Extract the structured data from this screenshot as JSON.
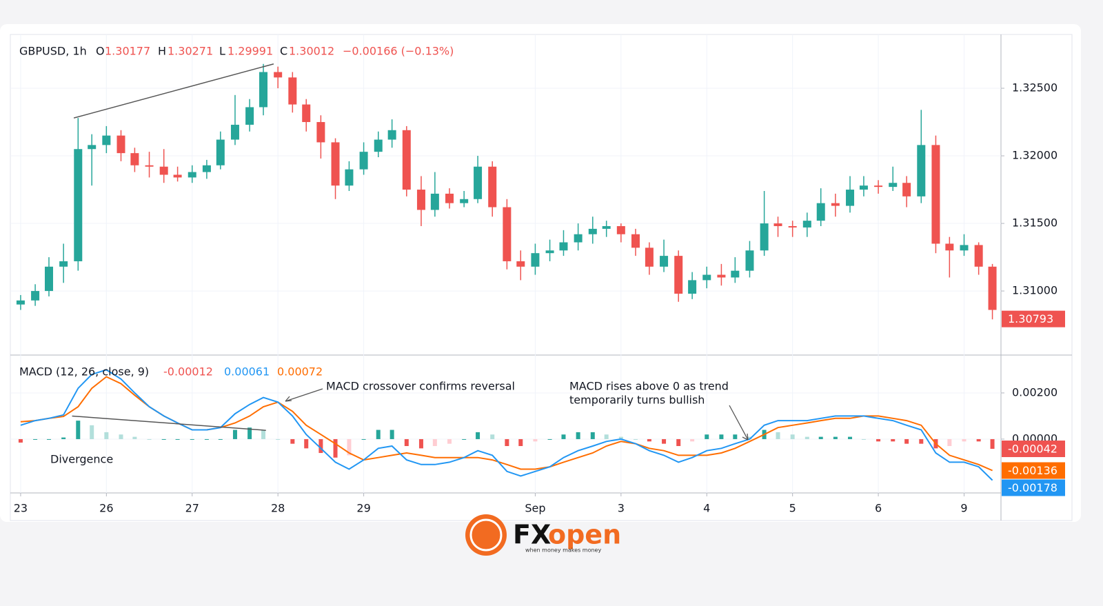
{
  "chart_data": [
    {
      "type": "candlestick",
      "legend": {
        "symbol": "GBPUSD, 1h",
        "items": [
          {
            "key": "O",
            "value": 1.30177
          },
          {
            "key": "H",
            "value": 1.30271
          },
          {
            "key": "L",
            "value": 1.29991
          },
          {
            "key": "C",
            "value": 1.30012
          }
        ],
        "change": "−0.00166 (−0.13%)"
      },
      "up_color": "#26a69a",
      "down_color": "#ef5350",
      "x": [
        0,
        0.17,
        0.33,
        0.5,
        0.67,
        0.83,
        1,
        1.17,
        1.33,
        1.5,
        1.67,
        1.83,
        2,
        2.17,
        2.33,
        2.5,
        2.67,
        2.83,
        3,
        3.17,
        3.33,
        3.5,
        3.67,
        3.83,
        4,
        4.17,
        4.33,
        4.5,
        4.67,
        4.83,
        5,
        5.17,
        5.33,
        5.5,
        5.67,
        5.83,
        6,
        6.17,
        6.33,
        6.5,
        6.67,
        6.83,
        7,
        7.17,
        7.33,
        7.5,
        7.67,
        7.83,
        8,
        8.17,
        8.33,
        8.5,
        8.67,
        8.83,
        9,
        9.17,
        9.33,
        9.5,
        9.67,
        9.83,
        10,
        10.17,
        10.33,
        10.5,
        10.67,
        10.83,
        11,
        11.17,
        11.33
      ],
      "open": [
        1.309,
        1.3093,
        1.31,
        1.3118,
        1.3122,
        1.3205,
        1.3208,
        1.3215,
        1.3202,
        1.3193,
        1.3192,
        1.3186,
        1.3184,
        1.3188,
        1.3193,
        1.3212,
        1.3223,
        1.3236,
        1.3262,
        1.3258,
        1.3238,
        1.3225,
        1.321,
        1.3178,
        1.319,
        1.3203,
        1.3212,
        1.3219,
        1.3175,
        1.316,
        1.3172,
        1.3165,
        1.3168,
        1.3192,
        1.3162,
        1.3122,
        1.3118,
        1.3128,
        1.313,
        1.3136,
        1.3142,
        1.3146,
        1.3148,
        1.3142,
        1.3132,
        1.3118,
        1.3126,
        1.3098,
        1.3108,
        1.3112,
        1.311,
        1.3115,
        1.313,
        1.315,
        1.3148,
        1.3147,
        1.3152,
        1.3165,
        1.3163,
        1.3175,
        1.3178,
        1.3177,
        1.318,
        1.317,
        1.3208,
        1.3135,
        1.313,
        1.3134,
        1.3118
      ],
      "high": [
        1.3097,
        1.3105,
        1.3125,
        1.3135,
        1.3228,
        1.3216,
        1.3222,
        1.3219,
        1.3206,
        1.3203,
        1.3205,
        1.3192,
        1.3193,
        1.3197,
        1.3218,
        1.3245,
        1.3242,
        1.3268,
        1.3266,
        1.3262,
        1.3242,
        1.323,
        1.3213,
        1.3196,
        1.321,
        1.3218,
        1.3227,
        1.3222,
        1.3185,
        1.3188,
        1.3176,
        1.3174,
        1.32,
        1.3196,
        1.3168,
        1.313,
        1.3135,
        1.3138,
        1.3145,
        1.315,
        1.3155,
        1.3152,
        1.315,
        1.3146,
        1.3136,
        1.3138,
        1.313,
        1.3114,
        1.3118,
        1.312,
        1.3125,
        1.3137,
        1.3174,
        1.3155,
        1.3152,
        1.3158,
        1.3176,
        1.3172,
        1.3185,
        1.3185,
        1.3182,
        1.3192,
        1.3185,
        1.3234,
        1.3215,
        1.314,
        1.3142,
        1.3136,
        1.312
      ],
      "low": [
        1.3086,
        1.3089,
        1.3096,
        1.3106,
        1.3115,
        1.3178,
        1.3202,
        1.3196,
        1.3188,
        1.3184,
        1.318,
        1.3181,
        1.318,
        1.3183,
        1.319,
        1.3208,
        1.3218,
        1.323,
        1.325,
        1.3232,
        1.3218,
        1.3198,
        1.3168,
        1.3174,
        1.3186,
        1.3199,
        1.3206,
        1.317,
        1.3148,
        1.3155,
        1.3161,
        1.3162,
        1.3165,
        1.3155,
        1.3116,
        1.3108,
        1.3112,
        1.3122,
        1.3126,
        1.313,
        1.3135,
        1.314,
        1.3136,
        1.3126,
        1.3112,
        1.3114,
        1.3092,
        1.3094,
        1.3102,
        1.3104,
        1.3106,
        1.311,
        1.3126,
        1.314,
        1.314,
        1.314,
        1.3148,
        1.3155,
        1.3158,
        1.317,
        1.3172,
        1.3174,
        1.3162,
        1.3165,
        1.3128,
        1.311,
        1.3126,
        1.3112,
        1.3079
      ],
      "close": [
        1.3093,
        1.31,
        1.3118,
        1.3122,
        1.3205,
        1.3208,
        1.3215,
        1.3202,
        1.3193,
        1.3192,
        1.3186,
        1.3184,
        1.3188,
        1.3193,
        1.3212,
        1.3223,
        1.3236,
        1.3262,
        1.3258,
        1.3238,
        1.3225,
        1.321,
        1.3178,
        1.319,
        1.3203,
        1.3212,
        1.3219,
        1.3175,
        1.316,
        1.3172,
        1.3165,
        1.3168,
        1.3192,
        1.3162,
        1.3122,
        1.3118,
        1.3128,
        1.313,
        1.3136,
        1.3142,
        1.3146,
        1.3148,
        1.3142,
        1.3132,
        1.3118,
        1.3126,
        1.3098,
        1.3108,
        1.3112,
        1.311,
        1.3115,
        1.313,
        1.315,
        1.3148,
        1.3147,
        1.3152,
        1.3165,
        1.3163,
        1.3175,
        1.3178,
        1.3177,
        1.318,
        1.317,
        1.3208,
        1.3135,
        1.313,
        1.3134,
        1.3118,
        1.3086
      ],
      "last_price": 1.30793,
      "trendline": {
        "x": [
          0.62,
          2.95
        ],
        "y": [
          1.3228,
          1.3268
        ]
      },
      "xlim": [
        -0.12,
        11.43
      ],
      "ylim": [
        1.30526,
        1.32898
      ],
      "yticks": [
        {
          "value": 1.31,
          "label": "1.31000"
        },
        {
          "value": 1.315,
          "label": "1.31500"
        },
        {
          "value": 1.32,
          "label": "1.32000"
        },
        {
          "value": 1.325,
          "label": "1.32500"
        }
      ],
      "grid": true
    },
    {
      "type": "macd",
      "title": "MACD (12, 26, close, 9)",
      "x": [
        0,
        0.17,
        0.33,
        0.5,
        0.67,
        0.83,
        1,
        1.17,
        1.33,
        1.5,
        1.67,
        1.83,
        2,
        2.17,
        2.33,
        2.5,
        2.67,
        2.83,
        3,
        3.17,
        3.33,
        3.5,
        3.67,
        3.83,
        4,
        4.17,
        4.33,
        4.5,
        4.67,
        4.83,
        5,
        5.17,
        5.33,
        5.5,
        5.67,
        5.83,
        6,
        6.17,
        6.33,
        6.5,
        6.67,
        6.83,
        7,
        7.17,
        7.33,
        7.5,
        7.67,
        7.83,
        8,
        8.17,
        8.33,
        8.5,
        8.67,
        8.83,
        9,
        9.17,
        9.33,
        9.5,
        9.67,
        9.83,
        10,
        10.17,
        10.33,
        10.5,
        10.67,
        10.83,
        11,
        11.17,
        11.33
      ],
      "histogram": {
        "colors": [
          "#26a69a",
          "#b2dfdb",
          "#ef5350",
          "#ffcdd2"
        ],
        "legend_color": "#ef5350",
        "last": -0.00012,
        "tag": -0.00042,
        "values": [
          -0.00015,
          0,
          0,
          7e-05,
          0.0008,
          0.0006,
          0.0003,
          0.0002,
          0.0001,
          0,
          0,
          0,
          0,
          0,
          0,
          0.0004,
          0.0005,
          0.0004,
          0,
          -0.0002,
          -0.0004,
          -0.0006,
          -0.0008,
          -0.0007,
          0,
          0.0004,
          0.0004,
          -0.0003,
          -0.0004,
          -0.0003,
          -0.0002,
          0,
          0.0003,
          0.0002,
          -0.0003,
          -0.0003,
          -0.0001,
          0,
          0.0002,
          0.0003,
          0.0003,
          0.0002,
          0.0001,
          0,
          -0.0001,
          -0.0002,
          -0.0003,
          -0.0001,
          0.0002,
          0.0002,
          0.0002,
          0.0001,
          0.0004,
          0.0003,
          0.0002,
          0.0001,
          0.0001,
          0.0001,
          0.0001,
          0,
          -0.0001,
          -0.0001,
          -0.0002,
          -0.0002,
          -0.0004,
          -0.0003,
          -0.0001,
          -0.0001,
          -0.00042
        ]
      },
      "series": [
        {
          "color": "#2196f3",
          "last": 0.00061,
          "tag": -0.00178,
          "values": [
            0.0006,
            0.0008,
            0.0009,
            0.00105,
            0.0022,
            0.0028,
            0.003,
            0.0026,
            0.002,
            0.0014,
            0.001,
            0.0007,
            0.0004,
            0.0004,
            0.0005,
            0.0011,
            0.0015,
            0.0018,
            0.0016,
            0.001,
            0.0002,
            -0.0004,
            -0.001,
            -0.0013,
            -0.0009,
            -0.0004,
            -0.0003,
            -0.0009,
            -0.0011,
            -0.0011,
            -0.001,
            -0.0008,
            -0.0005,
            -0.0007,
            -0.0014,
            -0.0016,
            -0.0014,
            -0.0012,
            -0.0008,
            -0.0005,
            -0.0003,
            -0.0001,
            0,
            -0.0002,
            -0.0005,
            -0.0007,
            -0.001,
            -0.0008,
            -0.0005,
            -0.0004,
            -0.0002,
            0,
            0.0006,
            0.0008,
            0.0008,
            0.0008,
            0.0009,
            0.001,
            0.001,
            0.001,
            0.0009,
            0.0008,
            0.0006,
            0.0004,
            -0.0006,
            -0.001,
            -0.001,
            -0.0012,
            -0.00178
          ]
        },
        {
          "color": "#ff6d00",
          "last": 0.00072,
          "tag": -0.00136,
          "values": [
            0.00075,
            0.0008,
            0.0009,
            0.00098,
            0.0014,
            0.0022,
            0.0027,
            0.0024,
            0.0019,
            0.0014,
            0.001,
            0.0007,
            0.0004,
            0.0004,
            0.0005,
            0.0007,
            0.001,
            0.0014,
            0.0016,
            0.0012,
            0.0006,
            0.0002,
            -0.0002,
            -0.0006,
            -0.0009,
            -0.0008,
            -0.0007,
            -0.0006,
            -0.0007,
            -0.0008,
            -0.0008,
            -0.0008,
            -0.0008,
            -0.0009,
            -0.0011,
            -0.0013,
            -0.0013,
            -0.0012,
            -0.001,
            -0.0008,
            -0.0006,
            -0.0003,
            -0.0001,
            -0.0002,
            -0.0004,
            -0.0005,
            -0.0007,
            -0.0007,
            -0.0007,
            -0.0006,
            -0.0004,
            -0.0001,
            0.0002,
            0.0005,
            0.0006,
            0.0007,
            0.0008,
            0.0009,
            0.0009,
            0.001,
            0.001,
            0.0009,
            0.0008,
            0.0006,
            -0.0002,
            -0.0007,
            -0.0009,
            -0.0011,
            -0.00136
          ]
        }
      ],
      "trendline": {
        "x": [
          0.6,
          2.86
        ],
        "y": [
          0.001,
          0.00038
        ]
      },
      "annotations": [
        {
          "lines": [
            "MACD crossover confirms reversal"
          ]
        },
        {
          "lines": [
            "MACD rises above 0 as trend",
            "temporarily turns bullish"
          ]
        },
        {
          "lines": [
            "Divergence"
          ]
        }
      ],
      "xlim": [
        -0.12,
        11.43
      ],
      "ylim": [
        -0.00233,
        0.00364
      ],
      "xticks": [
        {
          "value": 0,
          "label": "23"
        },
        {
          "value": 1,
          "label": "26"
        },
        {
          "value": 2,
          "label": "27"
        },
        {
          "value": 3,
          "label": "28"
        },
        {
          "value": 4,
          "label": "29"
        },
        {
          "value": 6,
          "label": "Sep"
        },
        {
          "value": 7,
          "label": "3"
        },
        {
          "value": 8,
          "label": "4"
        },
        {
          "value": 9,
          "label": "5"
        },
        {
          "value": 10,
          "label": "6"
        },
        {
          "value": 11,
          "label": "9"
        }
      ],
      "yticks": [
        {
          "value": 0,
          "label": "0.00000"
        },
        {
          "value": 0.002,
          "label": "0.00200"
        }
      ],
      "grid": true
    }
  ],
  "logo": {
    "brand_a": "FX",
    "brand_b": "open",
    "tagline": "when money makes money"
  }
}
